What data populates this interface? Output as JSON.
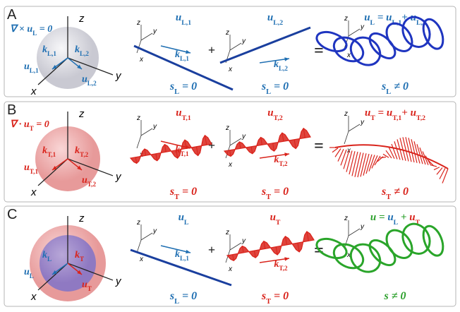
{
  "panels": [
    {
      "letter": "A",
      "condition": {
        "color": "#1f6fb2",
        "segments": [
          {
            "t": "∇ × "
          },
          {
            "t": "u",
            "sub": "L"
          },
          {
            "t": " = 0"
          }
        ]
      },
      "axis_labels": {
        "z": "z",
        "y": "y",
        "x": "x"
      },
      "sphere_labels": [
        {
          "color": "#1f6fb2",
          "segments": [
            {
              "t": "k",
              "sub": "L,1"
            }
          ]
        },
        {
          "color": "#1f6fb2",
          "segments": [
            {
              "t": "k",
              "sub": "L,2"
            }
          ]
        },
        {
          "color": "#1f6fb2",
          "segments": [
            {
              "t": "u",
              "sub": "L,1"
            }
          ]
        },
        {
          "color": "#1f6fb2",
          "segments": [
            {
              "t": "u",
              "sub": "L,2"
            }
          ]
        }
      ],
      "fields": [
        {
          "title": {
            "color": "#1f6fb2",
            "segments": [
              {
                "t": "u",
                "sub": "L,1"
              }
            ]
          },
          "k": {
            "color": "#1f6fb2",
            "segments": [
              {
                "t": "k",
                "sub": "L,1"
              }
            ]
          },
          "spin": {
            "color": "#1f6fb2",
            "segments": [
              {
                "t": "s",
                "sub": "L"
              },
              {
                "t": " = 0"
              }
            ]
          }
        },
        {
          "title": {
            "color": "#1f6fb2",
            "segments": [
              {
                "t": "u",
                "sub": "L,2"
              }
            ]
          },
          "k": {
            "color": "#1f6fb2",
            "segments": [
              {
                "t": "k",
                "sub": "L,2"
              }
            ]
          },
          "spin": {
            "color": "#1f6fb2",
            "segments": [
              {
                "t": "s",
                "sub": "L"
              },
              {
                "t": " = 0"
              }
            ]
          }
        },
        {
          "title": {
            "color": "#1f6fb2",
            "segments": [
              {
                "t": "u",
                "sub": "L"
              },
              {
                "t": " = "
              },
              {
                "t": "u",
                "sub": "L,1"
              },
              {
                "t": "+ "
              },
              {
                "t": "u",
                "sub": "L,2"
              }
            ]
          },
          "spin": {
            "color": "#1f6fb2",
            "segments": [
              {
                "t": "s",
                "sub": "L"
              },
              {
                "t": " ≠ 0"
              }
            ]
          }
        }
      ],
      "operators": [
        "+",
        "="
      ]
    },
    {
      "letter": "B",
      "condition": {
        "color": "#d9231b",
        "segments": [
          {
            "t": "∇ · "
          },
          {
            "t": "u",
            "sub": "T"
          },
          {
            "t": " = 0"
          }
        ]
      },
      "axis_labels": {
        "z": "z",
        "y": "y",
        "x": "x"
      },
      "sphere_labels": [
        {
          "color": "#d9231b",
          "segments": [
            {
              "t": "k",
              "sub": "T,1"
            }
          ]
        },
        {
          "color": "#d9231b",
          "segments": [
            {
              "t": "k",
              "sub": "T,2"
            }
          ]
        },
        {
          "color": "#d9231b",
          "segments": [
            {
              "t": "u",
              "sub": "T,1"
            }
          ]
        },
        {
          "color": "#d9231b",
          "segments": [
            {
              "t": "u",
              "sub": "T,2"
            }
          ]
        }
      ],
      "fields": [
        {
          "title": {
            "color": "#d9231b",
            "segments": [
              {
                "t": "u",
                "sub": "T,1"
              }
            ]
          },
          "k": {
            "color": "#d9231b",
            "segments": [
              {
                "t": "k",
                "sub": "T,1"
              }
            ]
          },
          "spin": {
            "color": "#d9231b",
            "segments": [
              {
                "t": "s",
                "sub": "T"
              },
              {
                "t": " = 0"
              }
            ]
          }
        },
        {
          "title": {
            "color": "#d9231b",
            "segments": [
              {
                "t": "u",
                "sub": "T,2"
              }
            ]
          },
          "k": {
            "color": "#d9231b",
            "segments": [
              {
                "t": "k",
                "sub": "T,2"
              }
            ]
          },
          "spin": {
            "color": "#d9231b",
            "segments": [
              {
                "t": "s",
                "sub": "T"
              },
              {
                "t": " = 0"
              }
            ]
          }
        },
        {
          "title": {
            "color": "#d9231b",
            "segments": [
              {
                "t": "u",
                "sub": "T"
              },
              {
                "t": " = "
              },
              {
                "t": "u",
                "sub": "T,1"
              },
              {
                "t": "+ "
              },
              {
                "t": "u",
                "sub": "T,2"
              }
            ]
          },
          "spin": {
            "color": "#d9231b",
            "segments": [
              {
                "t": "s",
                "sub": "T"
              },
              {
                "t": " ≠ 0"
              }
            ]
          }
        }
      ],
      "operators": [
        "+",
        "="
      ]
    },
    {
      "letter": "C",
      "axis_labels": {
        "z": "z",
        "y": "y",
        "x": "x"
      },
      "sphere_labels": [
        {
          "color": "#1f6fb2",
          "segments": [
            {
              "t": "k",
              "sub": "L"
            }
          ]
        },
        {
          "color": "#d9231b",
          "segments": [
            {
              "t": "k",
              "sub": "T"
            }
          ]
        },
        {
          "color": "#1f6fb2",
          "segments": [
            {
              "t": "u",
              "sub": "L"
            }
          ]
        },
        {
          "color": "#d9231b",
          "segments": [
            {
              "t": "u",
              "sub": "T"
            }
          ]
        }
      ],
      "fields": [
        {
          "title": {
            "color": "#1f6fb2",
            "segments": [
              {
                "t": "u",
                "sub": "L"
              }
            ]
          },
          "k": {
            "color": "#1f6fb2",
            "segments": [
              {
                "t": "k",
                "sub": "L,1"
              }
            ]
          },
          "spin": {
            "color": "#1f6fb2",
            "segments": [
              {
                "t": "s",
                "sub": "L"
              },
              {
                "t": " = 0"
              }
            ]
          }
        },
        {
          "title": {
            "color": "#d9231b",
            "segments": [
              {
                "t": "u",
                "sub": "T"
              }
            ]
          },
          "k": {
            "color": "#d9231b",
            "segments": [
              {
                "t": "k",
                "sub": "T,2"
              }
            ]
          },
          "spin": {
            "color": "#d9231b",
            "segments": [
              {
                "t": "s",
                "sub": "T"
              },
              {
                "t": " = 0"
              }
            ]
          }
        },
        {
          "title": {
            "color": "#2ca02c",
            "segments": [
              {
                "t": "u"
              },
              {
                "t": " = "
              },
              {
                "t": "u",
                "sub": "L",
                "color": "#1f6fb2"
              },
              {
                "t": " + "
              },
              {
                "t": "u",
                "sub": "T",
                "color": "#d9231b"
              }
            ]
          },
          "spin": {
            "color": "#2ca02c",
            "segments": [
              {
                "t": "s"
              },
              {
                "t": " ≠ 0"
              }
            ]
          }
        }
      ],
      "operators": [
        "+",
        "="
      ]
    }
  ]
}
